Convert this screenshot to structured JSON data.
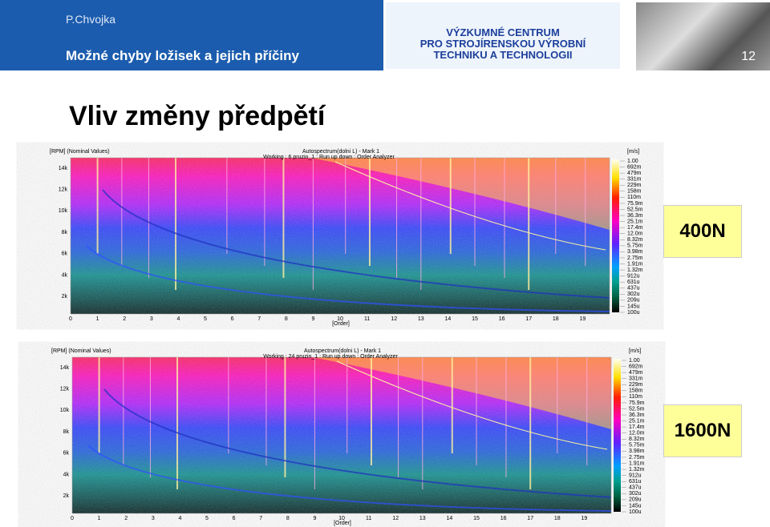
{
  "header": {
    "author": "P.Chvojka",
    "topic": "Možné chyby ložisek a jejich příčiny",
    "institute": [
      "VÝZKUMNÉ CENTRUM",
      "PRO STROJÍRENSKOU VÝROBNÍ",
      "TECHNIKU A TECHNOLOGII"
    ],
    "page_number": "12"
  },
  "title": "Vliv změny předpětí",
  "panels": [
    {
      "y_axis_label": "[RPM] (Nominal Values)",
      "plot_title": "Autospectrum(dolni L) - Mark 1",
      "plot_subtitle": "Working : 6 pruzin_1 : Run up down : Order Analyzer",
      "unit": "[m/s]",
      "y_ticks": [
        "14k",
        "12k",
        "10k",
        "8k",
        "6k",
        "4k",
        "2k"
      ],
      "x_ticks": [
        0,
        1,
        2,
        3,
        4,
        5,
        6,
        7,
        8,
        9,
        10,
        11,
        12,
        13,
        14,
        15,
        16,
        17,
        18,
        19
      ],
      "x_axis_label": "[Order]",
      "colorbar_ticks": [
        "1.00",
        "692m",
        "479m",
        "331m",
        "229m",
        "158m",
        "110m",
        "75.9m",
        "52.5m",
        "36.3m",
        "25.1m",
        "17.4m",
        "12.0m",
        "8.32m",
        "5.75m",
        "3.98m",
        "2.75m",
        "1.91m",
        "1.32m",
        "912u",
        "631u",
        "437u",
        "302u",
        "209u",
        "145u",
        "100u"
      ],
      "label": "400N"
    },
    {
      "y_axis_label": "[RPM] (Nominal Values)",
      "plot_title": "Autospectrum(dolni L) - Mark 1",
      "plot_subtitle": "Working : 24 pruzin_1 : Run up down : Order Analyzer",
      "unit": "[m/s]",
      "y_ticks": [
        "14k",
        "12k",
        "10k",
        "8k",
        "6k",
        "4k",
        "2k"
      ],
      "x_ticks": [
        0,
        1,
        2,
        3,
        4,
        5,
        6,
        7,
        8,
        9,
        10,
        11,
        12,
        13,
        14,
        15,
        16,
        17,
        18,
        19
      ],
      "x_axis_label": "[Order]",
      "colorbar_ticks": [
        "1.00",
        "692m",
        "479m",
        "331m",
        "229m",
        "158m",
        "110m",
        "75.9m",
        "52.5m",
        "36.3m",
        "25.1m",
        "17.4m",
        "12.0m",
        "8.32m",
        "5.75m",
        "3.98m",
        "2.75m",
        "1.91m",
        "1.32m",
        "912u",
        "631u",
        "437u",
        "302u",
        "209u",
        "145u",
        "100u"
      ],
      "label": "1600N"
    }
  ]
}
